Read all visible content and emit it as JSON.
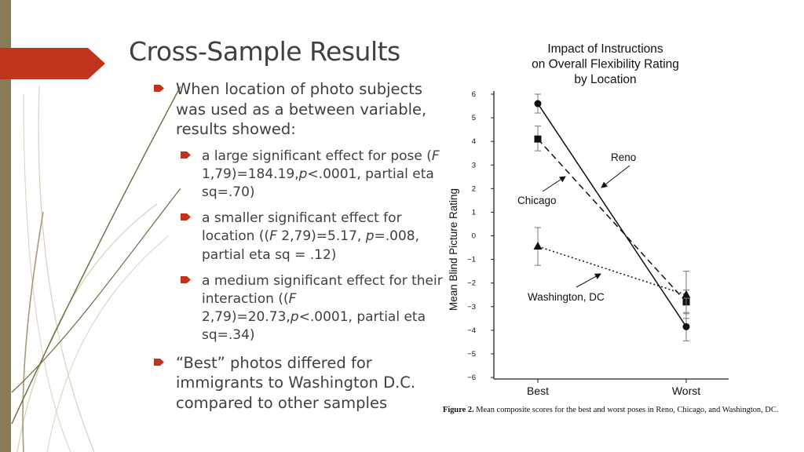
{
  "slide": {
    "title": "Cross-Sample Results",
    "accent_color": "#c0341d",
    "stripe_color": "#8a7b58",
    "bullets": [
      {
        "level": 1,
        "segments": [
          {
            "t": "When location of photo subjects was used as a between variable, results showed:"
          }
        ]
      },
      {
        "level": 2,
        "segments": [
          {
            "t": "a large significant effect for pose ("
          },
          {
            "t": "F",
            "i": true
          },
          {
            "t": " 1,79)=184.19,"
          },
          {
            "t": "p",
            "i": true
          },
          {
            "t": "<.0001, partial eta sq=.70)"
          }
        ]
      },
      {
        "level": 2,
        "segments": [
          {
            "t": "a smaller significant effect for location (("
          },
          {
            "t": "F",
            "i": true
          },
          {
            "t": " 2,79)=5.17, "
          },
          {
            "t": "p",
            "i": true
          },
          {
            "t": "=.008, partial eta sq = .12)"
          }
        ]
      },
      {
        "level": 2,
        "segments": [
          {
            "t": "a medium significant effect for their interaction (("
          },
          {
            "t": "F",
            "i": true
          },
          {
            "t": " 2,79)=20.73,"
          },
          {
            "t": "p",
            "i": true
          },
          {
            "t": "<.0001, partial eta sq=.34)"
          }
        ]
      },
      {
        "level": 1,
        "segments": [
          {
            "t": "“Best” photos differed for immigrants to Washington D.C. compared to other samples"
          }
        ]
      }
    ]
  },
  "figure": {
    "caption_label": "Figure 2.",
    "caption_text": "Mean composite scores for the best and worst poses in Reno, Chicago, and Washington, DC."
  },
  "chart_data": {
    "type": "line",
    "title": "Impact of Instructions\non Overall Flexibility Rating\nby Location",
    "ylabel": "Mean Blind  Picture Rating",
    "xlabel": "",
    "categories": [
      "Best",
      "Worst"
    ],
    "ylim": [
      -6,
      6
    ],
    "yticks": [
      "6",
      "5",
      "4",
      "3",
      "2",
      "1",
      "0",
      "−1",
      "−2",
      "−3",
      "−4",
      "−5",
      "−6"
    ],
    "grid": false,
    "series": [
      {
        "name": "Reno",
        "marker": "circle",
        "line": "solid",
        "values": [
          5.6,
          -3.85
        ],
        "error_lower": [
          5.2,
          -4.45
        ],
        "error_upper": [
          6.0,
          -3.25
        ]
      },
      {
        "name": "Chicago",
        "marker": "square",
        "line": "dashed",
        "values": [
          4.1,
          -2.8
        ],
        "error_lower": [
          3.6,
          -3.3
        ],
        "error_upper": [
          4.65,
          -2.3
        ]
      },
      {
        "name": "Washington, DC",
        "marker": "triangle",
        "line": "dotted",
        "values": [
          -0.45,
          -2.5
        ],
        "error_lower": [
          -1.25,
          -3.5
        ],
        "error_upper": [
          0.35,
          -1.5
        ]
      }
    ],
    "annotations": [
      "Reno",
      "Chicago",
      "Washington, DC"
    ]
  }
}
